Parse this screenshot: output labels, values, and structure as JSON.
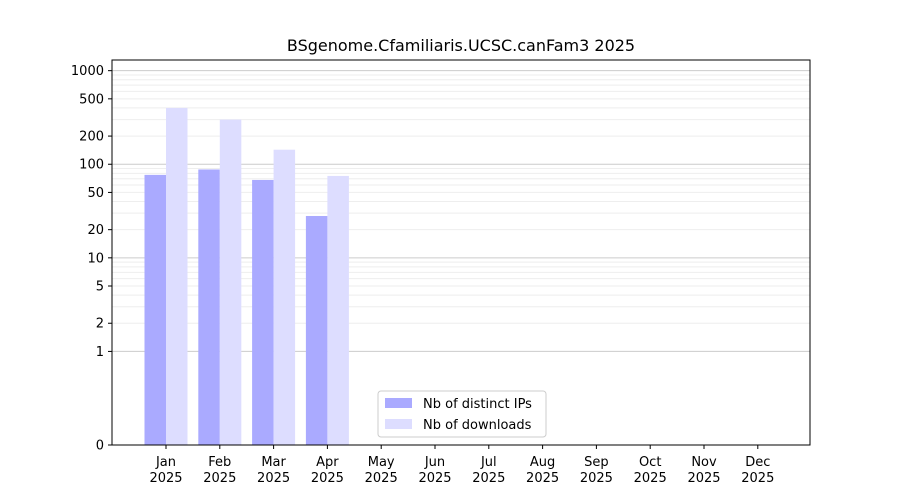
{
  "chart_data": {
    "type": "bar",
    "title": "BSgenome.Cfamiliaris.UCSC.canFam3 2025",
    "xlabel": "",
    "ylabel": "",
    "yscale": "symlog",
    "ylim": [
      0,
      1300
    ],
    "yticks": [
      0,
      1,
      2,
      5,
      10,
      20,
      50,
      100,
      200,
      500,
      1000
    ],
    "grid": "horizontal",
    "legend_position": "bottom-center",
    "categories": [
      "Jan\n2025",
      "Feb\n2025",
      "Mar\n2025",
      "Apr\n2025",
      "May\n2025",
      "Jun\n2025",
      "Jul\n2025",
      "Aug\n2025",
      "Sep\n2025",
      "Oct\n2025",
      "Nov\n2025",
      "Dec\n2025"
    ],
    "series": [
      {
        "name": "Nb of distinct IPs",
        "color": "#aaaaff",
        "values": [
          77,
          88,
          68,
          28,
          0,
          0,
          0,
          0,
          0,
          0,
          0,
          0
        ]
      },
      {
        "name": "Nb of downloads",
        "color": "#ddddff",
        "values": [
          400,
          300,
          143,
          75,
          0,
          0,
          0,
          0,
          0,
          0,
          0,
          0
        ]
      }
    ]
  }
}
